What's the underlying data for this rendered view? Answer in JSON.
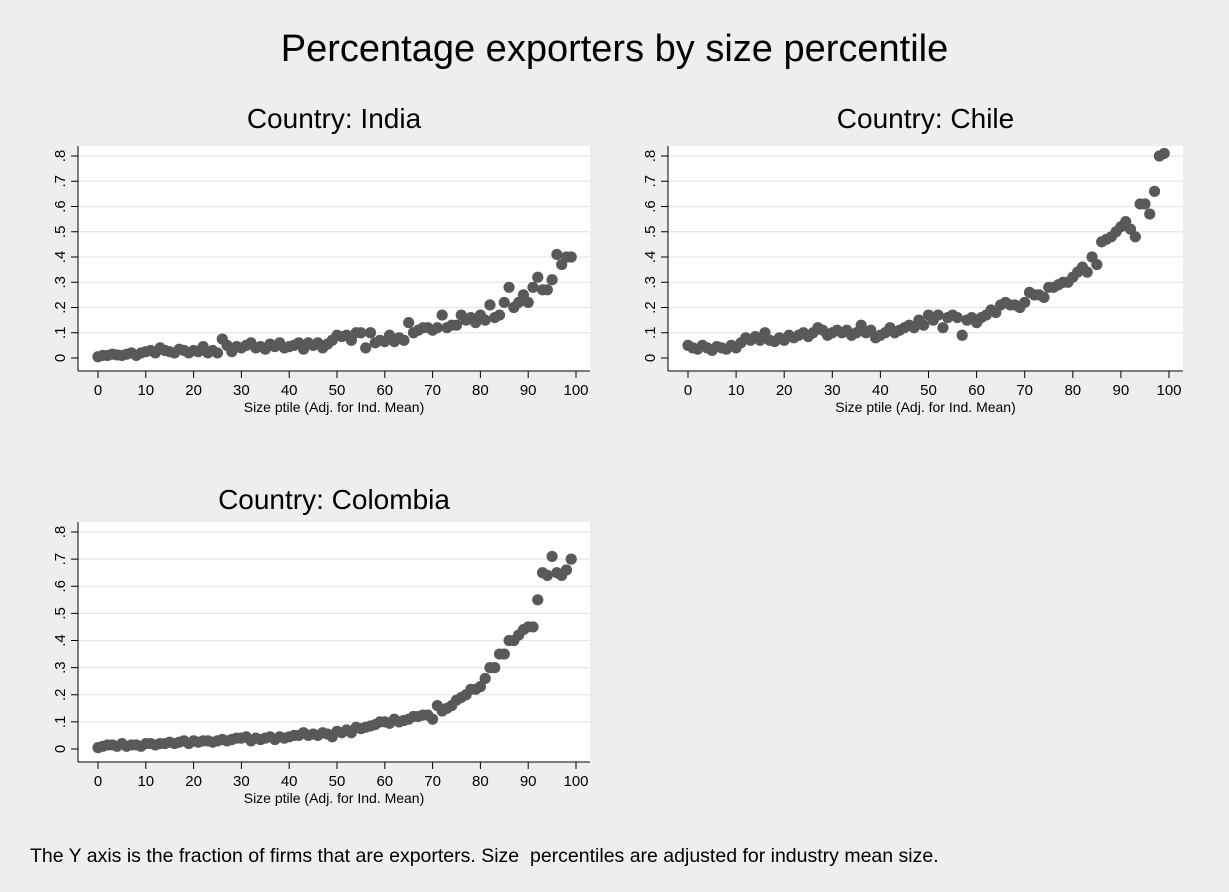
{
  "main_title": "Percentage exporters by size percentile",
  "caption": "The Y axis is the fraction of firms that are exporters. Size  percentiles are adjusted for industry mean size.",
  "colors": {
    "background": "#eeeeee",
    "plot_area": "#ffffff",
    "marker": "#595959",
    "grid": "#e6e6e6"
  },
  "chart_data": [
    {
      "type": "scatter",
      "title": "Country: India",
      "xlabel": "Size ptile (Adj. for Ind. Mean)",
      "ylabel": "",
      "xlim": [
        0,
        100
      ],
      "ylim": [
        0,
        0.8
      ],
      "x_ticks": [
        0,
        10,
        20,
        30,
        40,
        50,
        60,
        70,
        80,
        90,
        100
      ],
      "y_ticks": [
        0,
        0.1,
        0.2,
        0.3,
        0.4,
        0.5,
        0.6,
        0.7,
        0.8
      ],
      "y_tick_labels": [
        "0",
        ".1",
        ".2",
        ".3",
        ".4",
        ".5",
        ".6",
        ".7",
        ".8"
      ],
      "grid": true,
      "legend": "none",
      "x": [
        0,
        1,
        2,
        3,
        4,
        5,
        6,
        7,
        8,
        9,
        10,
        11,
        12,
        13,
        14,
        15,
        16,
        17,
        18,
        19,
        20,
        21,
        22,
        23,
        24,
        25,
        26,
        27,
        28,
        29,
        30,
        31,
        32,
        33,
        34,
        35,
        36,
        37,
        38,
        39,
        40,
        41,
        42,
        43,
        44,
        45,
        46,
        47,
        48,
        49,
        50,
        51,
        52,
        53,
        54,
        55,
        56,
        57,
        58,
        59,
        60,
        61,
        62,
        63,
        64,
        65,
        66,
        67,
        68,
        69,
        70,
        71,
        72,
        73,
        74,
        75,
        76,
        77,
        78,
        79,
        80,
        81,
        82,
        83,
        84,
        85,
        86,
        87,
        88,
        89,
        90,
        91,
        92,
        93,
        94,
        95,
        96,
        97,
        98,
        99
      ],
      "y": [
        0.005,
        0.01,
        0.01,
        0.015,
        0.012,
        0.01,
        0.015,
        0.02,
        0.01,
        0.02,
        0.025,
        0.03,
        0.02,
        0.04,
        0.03,
        0.025,
        0.02,
        0.035,
        0.03,
        0.02,
        0.03,
        0.025,
        0.045,
        0.02,
        0.03,
        0.02,
        0.075,
        0.05,
        0.025,
        0.045,
        0.04,
        0.05,
        0.06,
        0.04,
        0.045,
        0.035,
        0.055,
        0.045,
        0.06,
        0.04,
        0.045,
        0.05,
        0.06,
        0.035,
        0.06,
        0.05,
        0.06,
        0.04,
        0.055,
        0.07,
        0.09,
        0.085,
        0.09,
        0.07,
        0.1,
        0.1,
        0.04,
        0.1,
        0.06,
        0.07,
        0.065,
        0.09,
        0.065,
        0.08,
        0.07,
        0.14,
        0.1,
        0.11,
        0.12,
        0.12,
        0.11,
        0.12,
        0.17,
        0.12,
        0.13,
        0.13,
        0.17,
        0.15,
        0.16,
        0.14,
        0.17,
        0.15,
        0.21,
        0.16,
        0.17,
        0.22,
        0.28,
        0.2,
        0.22,
        0.25,
        0.22,
        0.28,
        0.32,
        0.27,
        0.27,
        0.31,
        0.41,
        0.37,
        0.4,
        0.4
      ]
    },
    {
      "type": "scatter",
      "title": "Country: Chile",
      "xlabel": "Size ptile (Adj. for Ind. Mean)",
      "ylabel": "",
      "xlim": [
        0,
        100
      ],
      "ylim": [
        0,
        0.8
      ],
      "x_ticks": [
        0,
        10,
        20,
        30,
        40,
        50,
        60,
        70,
        80,
        90,
        100
      ],
      "y_ticks": [
        0,
        0.1,
        0.2,
        0.3,
        0.4,
        0.5,
        0.6,
        0.7,
        0.8
      ],
      "y_tick_labels": [
        "0",
        ".1",
        ".2",
        ".3",
        ".4",
        ".5",
        ".6",
        ".7",
        ".8"
      ],
      "grid": true,
      "legend": "none",
      "x": [
        0,
        1,
        2,
        3,
        4,
        5,
        6,
        7,
        8,
        9,
        10,
        11,
        12,
        13,
        14,
        15,
        16,
        17,
        18,
        19,
        20,
        21,
        22,
        23,
        24,
        25,
        26,
        27,
        28,
        29,
        30,
        31,
        32,
        33,
        34,
        35,
        36,
        37,
        38,
        39,
        40,
        41,
        42,
        43,
        44,
        45,
        46,
        47,
        48,
        49,
        50,
        51,
        52,
        53,
        54,
        55,
        56,
        57,
        58,
        59,
        60,
        61,
        62,
        63,
        64,
        65,
        66,
        67,
        68,
        69,
        70,
        71,
        72,
        73,
        74,
        75,
        76,
        77,
        78,
        79,
        80,
        81,
        82,
        83,
        84,
        85,
        86,
        87,
        88,
        89,
        90,
        91,
        92,
        93,
        94,
        95,
        96,
        97,
        98,
        99
      ],
      "y": [
        0.05,
        0.04,
        0.035,
        0.05,
        0.04,
        0.03,
        0.045,
        0.04,
        0.035,
        0.05,
        0.04,
        0.06,
        0.08,
        0.07,
        0.085,
        0.07,
        0.1,
        0.07,
        0.065,
        0.08,
        0.07,
        0.09,
        0.08,
        0.09,
        0.1,
        0.085,
        0.1,
        0.12,
        0.11,
        0.09,
        0.1,
        0.11,
        0.1,
        0.11,
        0.09,
        0.1,
        0.13,
        0.1,
        0.11,
        0.08,
        0.09,
        0.1,
        0.12,
        0.1,
        0.11,
        0.12,
        0.13,
        0.12,
        0.15,
        0.13,
        0.17,
        0.15,
        0.17,
        0.12,
        0.16,
        0.17,
        0.16,
        0.09,
        0.15,
        0.16,
        0.14,
        0.16,
        0.17,
        0.19,
        0.18,
        0.21,
        0.22,
        0.21,
        0.21,
        0.2,
        0.22,
        0.26,
        0.25,
        0.25,
        0.24,
        0.28,
        0.28,
        0.29,
        0.3,
        0.3,
        0.32,
        0.34,
        0.36,
        0.34,
        0.4,
        0.37,
        0.46,
        0.47,
        0.48,
        0.5,
        0.52,
        0.54,
        0.51,
        0.48,
        0.61,
        0.61,
        0.57,
        0.66,
        0.8,
        0.81
      ]
    },
    {
      "type": "scatter",
      "title": "Country: Colombia",
      "xlabel": "Size ptile (Adj. for Ind. Mean)",
      "ylabel": "",
      "xlim": [
        0,
        100
      ],
      "ylim": [
        0,
        0.8
      ],
      "x_ticks": [
        0,
        10,
        20,
        30,
        40,
        50,
        60,
        70,
        80,
        90,
        100
      ],
      "y_ticks": [
        0,
        0.1,
        0.2,
        0.3,
        0.4,
        0.5,
        0.6,
        0.7,
        0.8
      ],
      "y_tick_labels": [
        "0",
        ".1",
        ".2",
        ".3",
        ".4",
        ".5",
        ".6",
        ".7",
        ".8"
      ],
      "grid": true,
      "legend": "none",
      "x": [
        0,
        1,
        2,
        3,
        4,
        5,
        6,
        7,
        8,
        9,
        10,
        11,
        12,
        13,
        14,
        15,
        16,
        17,
        18,
        19,
        20,
        21,
        22,
        23,
        24,
        25,
        26,
        27,
        28,
        29,
        30,
        31,
        32,
        33,
        34,
        35,
        36,
        37,
        38,
        39,
        40,
        41,
        42,
        43,
        44,
        45,
        46,
        47,
        48,
        49,
        50,
        51,
        52,
        53,
        54,
        55,
        56,
        57,
        58,
        59,
        60,
        61,
        62,
        63,
        64,
        65,
        66,
        67,
        68,
        69,
        70,
        71,
        72,
        73,
        74,
        75,
        76,
        77,
        78,
        79,
        80,
        81,
        82,
        83,
        84,
        85,
        86,
        87,
        88,
        89,
        90,
        91,
        92,
        93,
        94,
        95,
        96,
        97,
        98,
        99
      ],
      "y": [
        0.005,
        0.01,
        0.015,
        0.015,
        0.01,
        0.02,
        0.01,
        0.015,
        0.015,
        0.01,
        0.02,
        0.02,
        0.015,
        0.02,
        0.02,
        0.025,
        0.02,
        0.025,
        0.03,
        0.02,
        0.03,
        0.025,
        0.03,
        0.03,
        0.025,
        0.03,
        0.035,
        0.03,
        0.035,
        0.04,
        0.04,
        0.045,
        0.03,
        0.04,
        0.035,
        0.04,
        0.045,
        0.035,
        0.045,
        0.04,
        0.045,
        0.05,
        0.05,
        0.06,
        0.05,
        0.055,
        0.05,
        0.06,
        0.055,
        0.045,
        0.065,
        0.06,
        0.07,
        0.06,
        0.08,
        0.075,
        0.08,
        0.085,
        0.09,
        0.1,
        0.1,
        0.095,
        0.11,
        0.1,
        0.105,
        0.11,
        0.12,
        0.12,
        0.125,
        0.125,
        0.11,
        0.16,
        0.14,
        0.15,
        0.16,
        0.18,
        0.19,
        0.2,
        0.22,
        0.22,
        0.23,
        0.26,
        0.3,
        0.3,
        0.35,
        0.35,
        0.4,
        0.4,
        0.42,
        0.44,
        0.45,
        0.45,
        0.55,
        0.65,
        0.64,
        0.71,
        0.65,
        0.64,
        0.66,
        0.7
      ]
    }
  ]
}
